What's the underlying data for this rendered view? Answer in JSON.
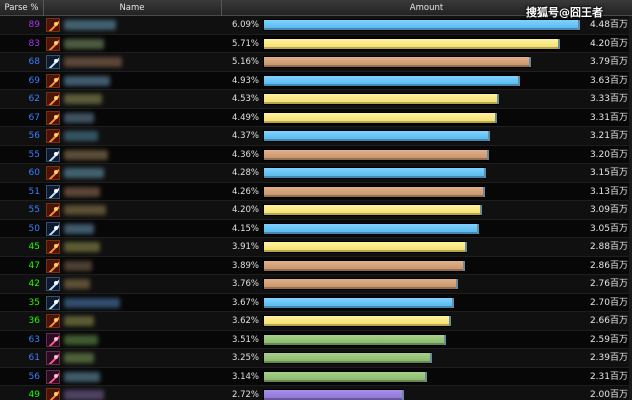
{
  "header": {
    "parse_label": "Parse %",
    "name_label": "Name",
    "amount_label": "Amount"
  },
  "watermark": "搜狐号@囧王者",
  "colors": {
    "parse_epic": "#a335ee",
    "parse_rare": "#3a7fff",
    "parse_uncommon": "#1eff00",
    "bar_blue": "#62c2f2",
    "bar_yellow": "#f7e582",
    "bar_tan": "#d3a07a",
    "bar_green": "#96c27a",
    "bar_purple": "#9a82dc"
  },
  "rows": [
    {
      "parse": "89",
      "tier": "epic",
      "spec": "fire-mage-icon",
      "pct": "6.09%",
      "amount": "4.48百万",
      "fraction": 1.0,
      "bar": "blue"
    },
    {
      "parse": "83",
      "tier": "epic",
      "spec": "fire-mage-icon",
      "pct": "5.71%",
      "amount": "4.20百万",
      "fraction": 0.938,
      "bar": "yellow"
    },
    {
      "parse": "68",
      "tier": "rare",
      "spec": "frost-mage-icon",
      "pct": "5.16%",
      "amount": "3.79百万",
      "fraction": 0.847,
      "bar": "tan"
    },
    {
      "parse": "69",
      "tier": "rare",
      "spec": "fire-mage-icon",
      "pct": "4.93%",
      "amount": "3.63百万",
      "fraction": 0.81,
      "bar": "blue"
    },
    {
      "parse": "62",
      "tier": "rare",
      "spec": "fire-mage-icon",
      "pct": "4.53%",
      "amount": "3.33百万",
      "fraction": 0.743,
      "bar": "yellow"
    },
    {
      "parse": "67",
      "tier": "rare",
      "spec": "fire-mage-icon",
      "pct": "4.49%",
      "amount": "3.31百万",
      "fraction": 0.739,
      "bar": "yellow"
    },
    {
      "parse": "56",
      "tier": "rare",
      "spec": "fire-mage-icon",
      "pct": "4.37%",
      "amount": "3.21百万",
      "fraction": 0.717,
      "bar": "blue"
    },
    {
      "parse": "55",
      "tier": "rare",
      "spec": "frost-mage-icon",
      "pct": "4.36%",
      "amount": "3.20百万",
      "fraction": 0.714,
      "bar": "tan"
    },
    {
      "parse": "60",
      "tier": "rare",
      "spec": "fire-mage-icon",
      "pct": "4.28%",
      "amount": "3.15百万",
      "fraction": 0.703,
      "bar": "blue"
    },
    {
      "parse": "51",
      "tier": "rare",
      "spec": "frost-mage-icon",
      "pct": "4.26%",
      "amount": "3.13百万",
      "fraction": 0.699,
      "bar": "tan"
    },
    {
      "parse": "55",
      "tier": "rare",
      "spec": "fire-mage-icon",
      "pct": "4.20%",
      "amount": "3.09百万",
      "fraction": 0.69,
      "bar": "yellow"
    },
    {
      "parse": "50",
      "tier": "rare",
      "spec": "frost-mage-icon",
      "pct": "4.15%",
      "amount": "3.05百万",
      "fraction": 0.681,
      "bar": "blue"
    },
    {
      "parse": "45",
      "tier": "unc",
      "spec": "fire-mage-icon",
      "pct": "3.91%",
      "amount": "2.88百万",
      "fraction": 0.643,
      "bar": "yellow"
    },
    {
      "parse": "47",
      "tier": "unc",
      "spec": "fire-mage-icon",
      "pct": "3.89%",
      "amount": "2.86百万",
      "fraction": 0.638,
      "bar": "tan"
    },
    {
      "parse": "42",
      "tier": "unc",
      "spec": "frost-mage-icon",
      "pct": "3.76%",
      "amount": "2.76百万",
      "fraction": 0.616,
      "bar": "tan"
    },
    {
      "parse": "35",
      "tier": "unc",
      "spec": "frost-mage-icon",
      "pct": "3.67%",
      "amount": "2.70百万",
      "fraction": 0.603,
      "bar": "blue"
    },
    {
      "parse": "36",
      "tier": "unc",
      "spec": "fire-mage-icon",
      "pct": "3.62%",
      "amount": "2.66百万",
      "fraction": 0.594,
      "bar": "yellow"
    },
    {
      "parse": "63",
      "tier": "rare",
      "spec": "arcane-mage-icon",
      "pct": "3.51%",
      "amount": "2.59百万",
      "fraction": 0.578,
      "bar": "green"
    },
    {
      "parse": "61",
      "tier": "rare",
      "spec": "arcane-mage-icon",
      "pct": "3.25%",
      "amount": "2.39百万",
      "fraction": 0.533,
      "bar": "green"
    },
    {
      "parse": "56",
      "tier": "rare",
      "spec": "arcane-mage-icon",
      "pct": "3.14%",
      "amount": "2.31百万",
      "fraction": 0.516,
      "bar": "green"
    },
    {
      "parse": "49",
      "tier": "unc",
      "spec": "fire-mage-icon",
      "pct": "2.72%",
      "amount": "2.00百万",
      "fraction": 0.446,
      "bar": "purple"
    }
  ]
}
